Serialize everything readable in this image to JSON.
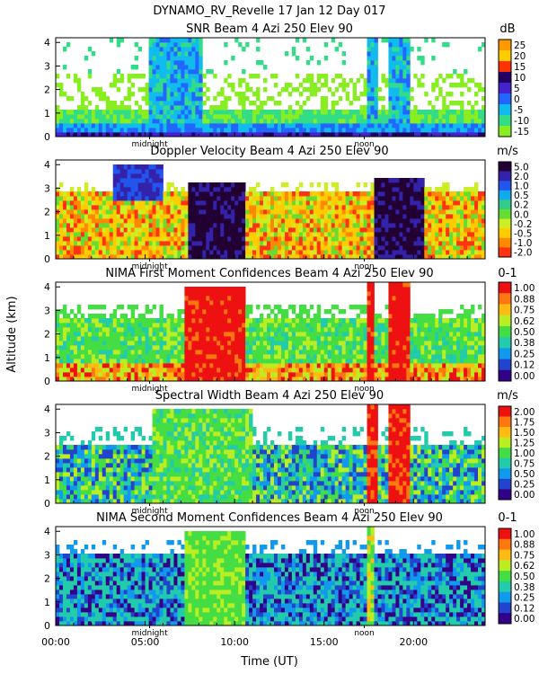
{
  "figure": {
    "main_title": "DYNAMO_RV_Revelle  17 Jan 12 Day 017",
    "shared_ylabel": "Altitude (km)",
    "shared_xlabel": "Time (UT)",
    "x_ticks": [
      "00:00",
      "05:00",
      "10:00",
      "15:00",
      "20:00"
    ],
    "midnight_label": "midnight",
    "noon_label": "noon"
  },
  "chart_data": [
    {
      "type": "heatmap",
      "title": "SNR Beam 4 Azi 250 Elev 90",
      "unit": "dB",
      "xlabel": "Time (UT)",
      "ylabel": "Altitude (km)",
      "xlim": [
        0,
        24
      ],
      "ylim": [
        0,
        4.2
      ],
      "y_ticks": [
        "0",
        "1",
        "2",
        "3",
        "4"
      ],
      "colorbar_ticks": [
        "25",
        "20",
        "15",
        "10",
        "5",
        "0",
        "-5",
        "-10",
        "-15"
      ],
      "colors": [
        "#ff9900",
        "#ffcc00",
        "#ff3300",
        "#220066",
        "#4422cc",
        "#2266ff",
        "#11bbee",
        "#33dd88",
        "#88ee22"
      ]
    },
    {
      "type": "heatmap",
      "title": "Doppler Velocity Beam 4 Azi 250 Elev 90",
      "unit": "m/s",
      "xlabel": "Time (UT)",
      "ylabel": "Altitude (km)",
      "xlim": [
        0,
        24
      ],
      "ylim": [
        0,
        4.2
      ],
      "y_ticks": [
        "0",
        "1",
        "2",
        "3",
        "4"
      ],
      "colorbar_ticks": [
        "5.0",
        "2.0",
        "1.0",
        "0.5",
        "0.2",
        "0.0",
        "-0.2",
        "-0.5",
        "-1.0",
        "-2.0"
      ],
      "colors": [
        "#220033",
        "#3322aa",
        "#2255ee",
        "#11aaee",
        "#33cc88",
        "#66dd33",
        "#ccee22",
        "#ffcc00",
        "#ff8800",
        "#ff3311"
      ]
    },
    {
      "type": "heatmap",
      "title": "NIMA First Moment Confidences Beam 4 Azi 250 Elev 90",
      "unit": "0-1",
      "xlabel": "Time (UT)",
      "ylabel": "Altitude (km)",
      "xlim": [
        0,
        24
      ],
      "ylim": [
        0,
        4.2
      ],
      "y_ticks": [
        "0",
        "1",
        "2",
        "3",
        "4"
      ],
      "colorbar_ticks": [
        "1.00",
        "0.88",
        "0.75",
        "0.62",
        "0.50",
        "0.38",
        "0.25",
        "0.12",
        "0.00"
      ],
      "colors": [
        "#ee1111",
        "#ff7711",
        "#ffbb11",
        "#bbee22",
        "#44dd44",
        "#22ccaa",
        "#1199ee",
        "#2244cc",
        "#330088"
      ]
    },
    {
      "type": "heatmap",
      "title": "Spectral Width Beam 4 Azi 250 Elev 90",
      "unit": "m/s",
      "xlabel": "Time (UT)",
      "ylabel": "Altitude (km)",
      "xlim": [
        0,
        24
      ],
      "ylim": [
        0,
        4.2
      ],
      "y_ticks": [
        "0",
        "1",
        "2",
        "3",
        "4"
      ],
      "colorbar_ticks": [
        "2.00",
        "1.75",
        "1.50",
        "1.25",
        "1.00",
        "0.75",
        "0.50",
        "0.25",
        "0.00"
      ],
      "colors": [
        "#ee1111",
        "#ff7711",
        "#ffbb11",
        "#bbee22",
        "#44dd44",
        "#22ccaa",
        "#1199ee",
        "#2244cc",
        "#330088"
      ]
    },
    {
      "type": "heatmap",
      "title": "NIMA Second Moment Confidences Beam 4 Azi 250 Elev 90",
      "unit": "0-1",
      "xlabel": "Time (UT)",
      "ylabel": "Altitude (km)",
      "xlim": [
        0,
        24
      ],
      "ylim": [
        0,
        4.2
      ],
      "y_ticks": [
        "0",
        "1",
        "2",
        "3",
        "4"
      ],
      "colorbar_ticks": [
        "1.00",
        "0.88",
        "0.75",
        "0.62",
        "0.50",
        "0.38",
        "0.25",
        "0.12",
        "0.00"
      ],
      "colors": [
        "#ee1111",
        "#ff7711",
        "#ffbb11",
        "#bbee22",
        "#44dd44",
        "#22ccaa",
        "#1199ee",
        "#2244cc",
        "#330088"
      ]
    }
  ]
}
